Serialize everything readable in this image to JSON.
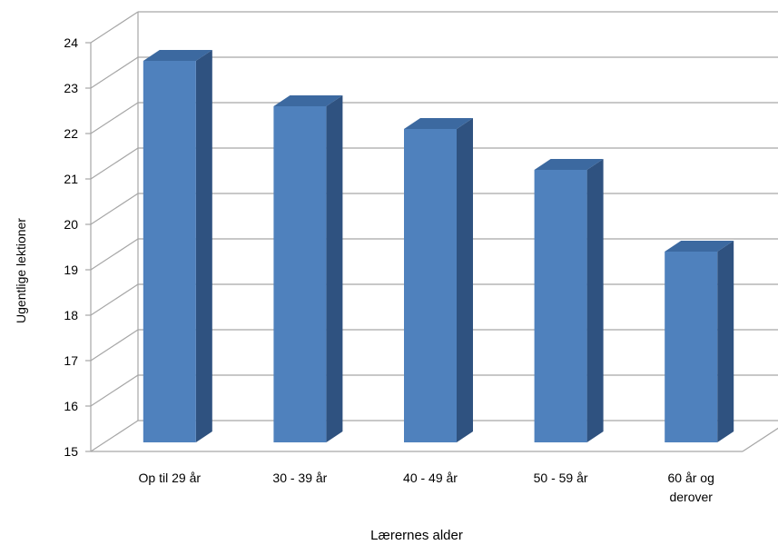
{
  "chart_data": {
    "type": "bar",
    "style": "3d-column",
    "title": "",
    "xlabel": "Lærernes alder",
    "ylabel": "Ugentlige lektioner",
    "ylim": [
      15,
      24
    ],
    "y_ticks": [
      "15",
      "16",
      "17",
      "18",
      "19",
      "20",
      "21",
      "22",
      "23",
      "24"
    ],
    "categories": [
      "Op til 29 år",
      "30 - 39 år",
      "40 - 49 år",
      "50 - 59 år",
      "60 år og derover"
    ],
    "category_lines": [
      [
        "Op til 29 år"
      ],
      [
        "30 - 39 år"
      ],
      [
        "40 - 49 år"
      ],
      [
        "50 - 59 år"
      ],
      [
        "60 år og",
        "derover"
      ]
    ],
    "values": [
      23.4,
      22.4,
      21.9,
      21.0,
      19.2
    ],
    "grid": true,
    "legend": "none",
    "colors": {
      "bar_front": "#4f81bd",
      "bar_side": "#2f5280",
      "bar_top": "#3c69a0",
      "grid": "#a6a6a6"
    }
  }
}
